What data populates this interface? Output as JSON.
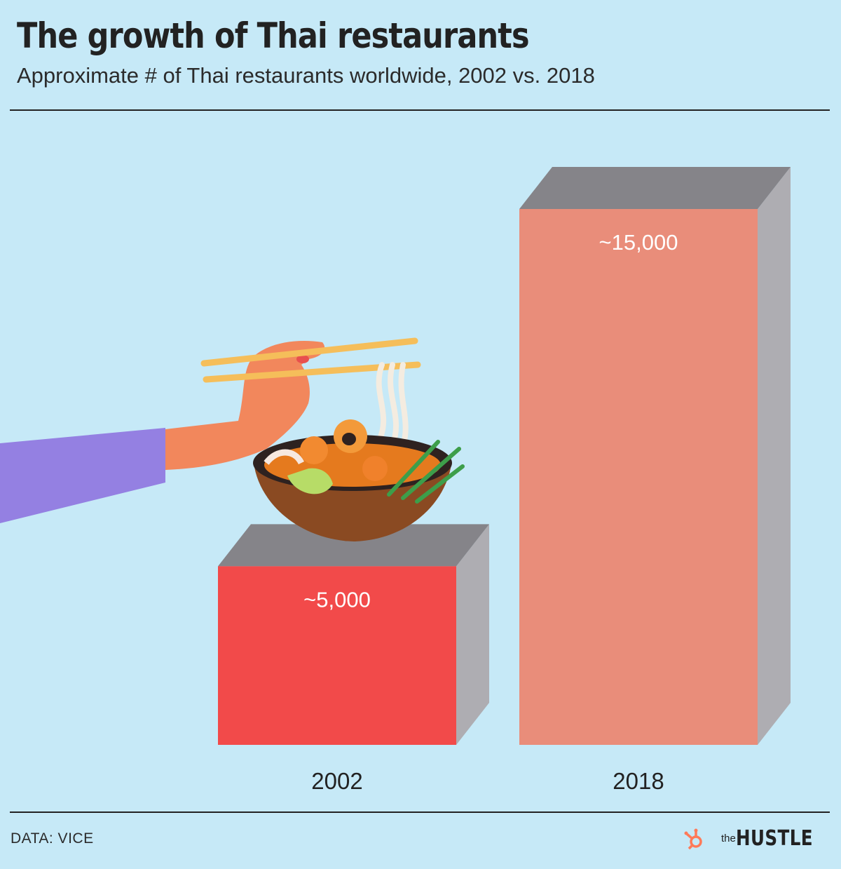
{
  "header": {
    "title": "The growth of Thai restaurants",
    "subtitle": "Approximate # of Thai restaurants worldwide, 2002 vs. 2018"
  },
  "chart_data": {
    "type": "bar",
    "categories": [
      "2002",
      "2018"
    ],
    "values": [
      5000,
      15000
    ],
    "value_labels": [
      "~5,000",
      "~15,000"
    ],
    "bar_colors": [
      "#f24a4a",
      "#e98d7a"
    ],
    "side_color": "#aeadb2",
    "top_color": "#858489",
    "label_color": "#ffffff",
    "ylim": [
      0,
      15000
    ],
    "grid": false
  },
  "footer": {
    "source": "DATA: VICE",
    "brand_small": "the",
    "brand_big": "HUSTLE",
    "brand_icon": "hubspot-sprocket-icon",
    "brand_icon_color": "#ff7a59"
  },
  "illustration": {
    "icon": "hand-with-chopsticks-and-noodle-bowl-illustration"
  }
}
